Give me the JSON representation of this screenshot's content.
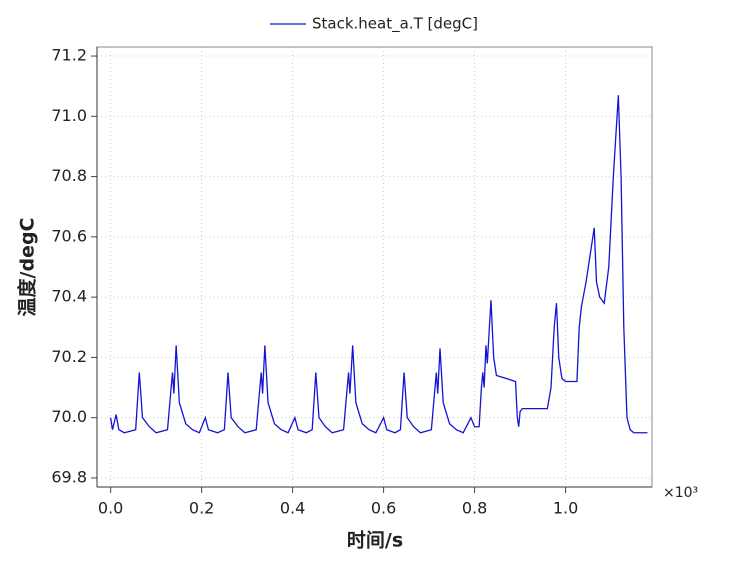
{
  "chart_data": {
    "type": "line",
    "xlabel": "时间/s",
    "ylabel": "温度/degC",
    "x_multiplier": "×10³",
    "legend": "top",
    "grid": true,
    "xlim": [
      -0.03,
      1.19
    ],
    "ylim": [
      69.77,
      71.23
    ],
    "xticks": [
      {
        "value": 0,
        "label": "0.0"
      },
      0.2,
      0.4,
      0.6,
      0.8,
      {
        "value": 1,
        "label": "1.0"
      }
    ],
    "yticks": [
      69.8,
      {
        "value": 70,
        "label": "70.0"
      },
      70.2,
      70.4,
      70.6,
      70.8,
      {
        "value": 71,
        "label": "71.0"
      },
      71.2
    ],
    "x": [
      0.0,
      0.004,
      0.012,
      0.018,
      0.03,
      0.055,
      0.063,
      0.07,
      0.085,
      0.1,
      0.125,
      0.133,
      0.136,
      0.139,
      0.144,
      0.151,
      0.165,
      0.18,
      0.195,
      0.208,
      0.215,
      0.235,
      0.25,
      0.258,
      0.265,
      0.28,
      0.295,
      0.32,
      0.328,
      0.331,
      0.334,
      0.339,
      0.346,
      0.36,
      0.375,
      0.39,
      0.405,
      0.412,
      0.43,
      0.443,
      0.451,
      0.458,
      0.472,
      0.487,
      0.512,
      0.52,
      0.523,
      0.526,
      0.532,
      0.539,
      0.553,
      0.568,
      0.583,
      0.6,
      0.607,
      0.625,
      0.637,
      0.645,
      0.652,
      0.666,
      0.681,
      0.705,
      0.713,
      0.716,
      0.719,
      0.724,
      0.731,
      0.745,
      0.76,
      0.775,
      0.792,
      0.8,
      0.81,
      0.815,
      0.818,
      0.821,
      0.825,
      0.828,
      0.836,
      0.842,
      0.848,
      0.87,
      0.89,
      0.894,
      0.897,
      0.9,
      0.905,
      0.96,
      0.968,
      0.975,
      0.98,
      0.985,
      0.992,
      1.0,
      1.025,
      1.03,
      1.035,
      1.045,
      1.055,
      1.063,
      1.068,
      1.075,
      1.085,
      1.095,
      1.105,
      1.116,
      1.122,
      1.128,
      1.135,
      1.142,
      1.15,
      1.18
    ],
    "series": [
      {
        "name": "Stack.heat_a.T [degC]",
        "color": "#1414d2",
        "values": [
          70.0,
          69.96,
          70.01,
          69.96,
          69.95,
          69.96,
          70.15,
          70.0,
          69.97,
          69.95,
          69.96,
          70.1,
          70.15,
          70.08,
          70.24,
          70.05,
          69.98,
          69.96,
          69.95,
          70.0,
          69.96,
          69.95,
          69.96,
          70.15,
          70.0,
          69.97,
          69.95,
          69.96,
          70.1,
          70.15,
          70.08,
          70.24,
          70.05,
          69.98,
          69.96,
          69.95,
          70.0,
          69.96,
          69.95,
          69.96,
          70.15,
          70.0,
          69.97,
          69.95,
          69.96,
          70.1,
          70.15,
          70.08,
          70.24,
          70.05,
          69.98,
          69.96,
          69.95,
          70.0,
          69.96,
          69.95,
          69.96,
          70.15,
          70.0,
          69.97,
          69.95,
          69.96,
          70.1,
          70.15,
          70.08,
          70.23,
          70.05,
          69.98,
          69.96,
          69.95,
          70.0,
          69.97,
          69.97,
          70.1,
          70.15,
          70.1,
          70.24,
          70.18,
          70.39,
          70.2,
          70.14,
          70.13,
          70.12,
          70.0,
          69.97,
          70.02,
          70.03,
          70.03,
          70.1,
          70.3,
          70.38,
          70.2,
          70.13,
          70.12,
          70.12,
          70.3,
          70.37,
          70.45,
          70.55,
          70.63,
          70.45,
          70.4,
          70.38,
          70.5,
          70.8,
          71.07,
          70.8,
          70.3,
          70.0,
          69.96,
          69.95,
          69.95
        ]
      }
    ]
  }
}
